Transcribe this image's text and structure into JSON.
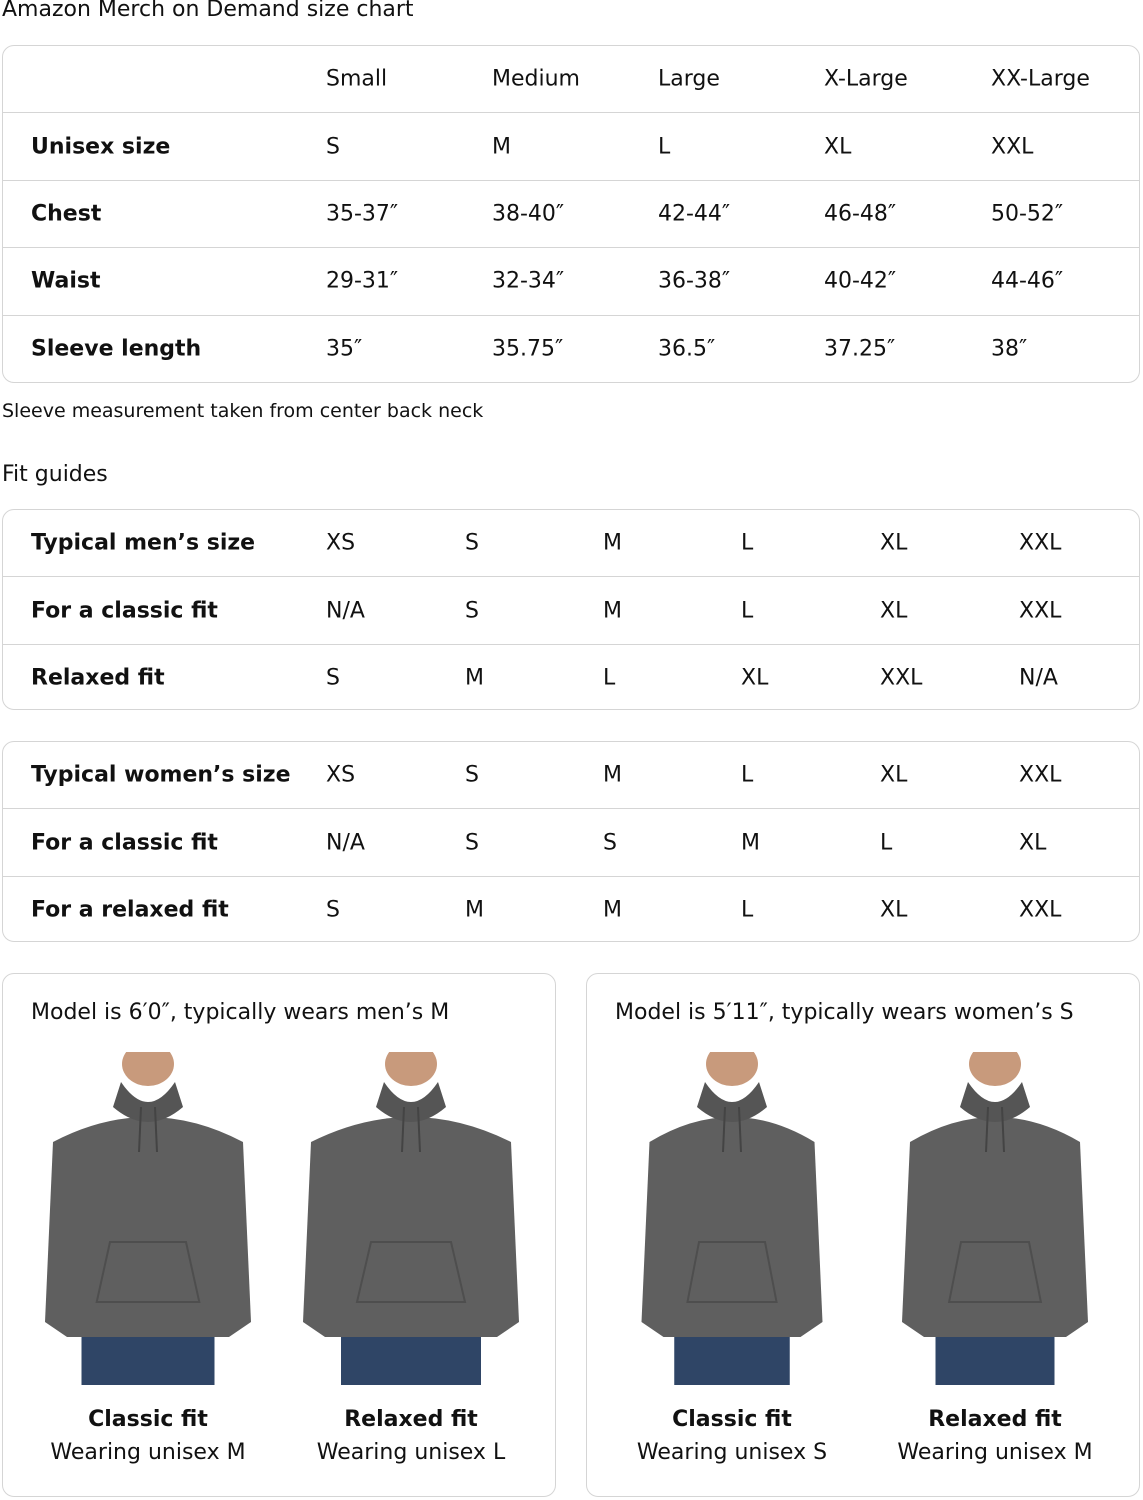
{
  "title": "Amazon Merch on Demand size chart",
  "size_chart": {
    "columns": [
      "Small",
      "Medium",
      "Large",
      "X-Large",
      "XX-Large"
    ],
    "rows": [
      {
        "label": "Unisex size",
        "values": [
          "S",
          "M",
          "L",
          "XL",
          "XXL"
        ]
      },
      {
        "label": "Chest",
        "values": [
          "35-37″",
          "38-40″",
          "42-44″",
          "46-48″",
          "50-52″"
        ]
      },
      {
        "label": "Waist",
        "values": [
          "29-31″",
          "32-34″",
          "36-38″",
          "40-42″",
          "44-46″"
        ]
      },
      {
        "label": "Sleeve length",
        "values": [
          "35″",
          "35.75″",
          "36.5″",
          "37.25″",
          "38″"
        ]
      }
    ]
  },
  "note": "Sleeve measurement taken from center back neck",
  "fit_guides_title": "Fit guides",
  "mens_fit": [
    {
      "label": "Typical men’s size",
      "values": [
        "XS",
        "S",
        "M",
        "L",
        "XL",
        "XXL"
      ]
    },
    {
      "label": "For a classic fit",
      "values": [
        "N/A",
        "S",
        "M",
        "L",
        "XL",
        "XXL"
      ]
    },
    {
      "label": "Relaxed fit",
      "values": [
        "S",
        "M",
        "L",
        "XL",
        "XXL",
        "N/A"
      ]
    }
  ],
  "womens_fit": [
    {
      "label": "Typical women’s size",
      "values": [
        "XS",
        "S",
        "M",
        "L",
        "XL",
        "XXL"
      ]
    },
    {
      "label": "For a classic fit",
      "values": [
        "N/A",
        "S",
        "S",
        "M",
        "L",
        "XL"
      ]
    },
    {
      "label": "For a relaxed fit",
      "values": [
        "S",
        "M",
        "M",
        "L",
        "XL",
        "XXL"
      ]
    }
  ],
  "models": [
    {
      "heading": "Model is 6′0″, typically wears men’s M",
      "figures": [
        {
          "fit": "Classic fit",
          "wearing": "Wearing unisex M"
        },
        {
          "fit": "Relaxed fit",
          "wearing": "Wearing unisex L"
        }
      ]
    },
    {
      "heading": "Model is 5′11″, typically wears women’s S",
      "figures": [
        {
          "fit": "Classic fit",
          "wearing": "Wearing unisex S"
        },
        {
          "fit": "Relaxed fit",
          "wearing": "Wearing unisex M"
        }
      ]
    }
  ],
  "colors": {
    "hoodie": "#5f5f5f",
    "jeans": "#2f4566",
    "border": "#d5d5d5"
  }
}
